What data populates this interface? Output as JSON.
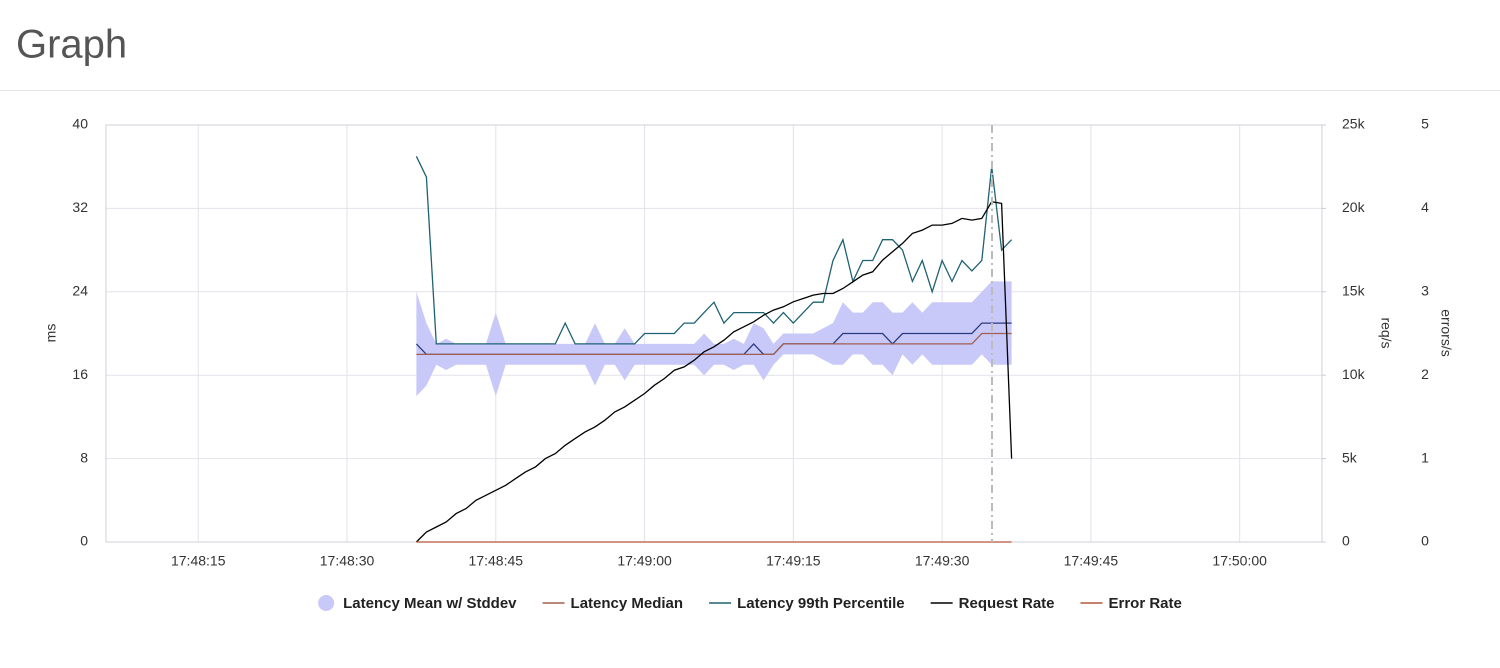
{
  "chart_data": {
    "type": "line",
    "title": "Graph",
    "x": [
      "17:48:37",
      "17:48:38",
      "17:48:39",
      "17:48:40",
      "17:48:41",
      "17:48:42",
      "17:48:43",
      "17:48:44",
      "17:48:45",
      "17:48:46",
      "17:48:47",
      "17:48:48",
      "17:48:49",
      "17:48:50",
      "17:48:51",
      "17:48:52",
      "17:48:53",
      "17:48:54",
      "17:48:55",
      "17:48:56",
      "17:48:57",
      "17:48:58",
      "17:48:59",
      "17:49:00",
      "17:49:01",
      "17:49:02",
      "17:49:03",
      "17:49:04",
      "17:49:05",
      "17:49:06",
      "17:49:07",
      "17:49:08",
      "17:49:09",
      "17:49:10",
      "17:49:11",
      "17:49:12",
      "17:49:13",
      "17:49:14",
      "17:49:15",
      "17:49:16",
      "17:49:17",
      "17:49:18",
      "17:49:19",
      "17:49:20",
      "17:49:21",
      "17:49:22",
      "17:49:23",
      "17:49:24",
      "17:49:25",
      "17:49:26",
      "17:49:27",
      "17:49:28",
      "17:49:29",
      "17:49:30",
      "17:49:31",
      "17:49:32",
      "17:49:33",
      "17:49:34",
      "17:49:35",
      "17:49:36",
      "17:49:37"
    ],
    "xlim": [
      "17:48:05.7",
      "17:50:08.3"
    ],
    "xticks": [
      "17:48:15",
      "17:48:30",
      "17:48:45",
      "17:49:00",
      "17:49:15",
      "17:49:30",
      "17:49:45",
      "17:50:00"
    ],
    "ylabel": "ms",
    "ylim": [
      0,
      40
    ],
    "yticks": [
      0,
      8,
      16,
      24,
      32,
      40
    ],
    "y2label": "req/s",
    "y2lim": [
      0,
      25000
    ],
    "y2ticks": [
      0,
      {
        "value": 5000,
        "label": "5k"
      },
      {
        "value": 10000,
        "label": "10k"
      },
      {
        "value": 15000,
        "label": "15k"
      },
      {
        "value": 20000,
        "label": "20k"
      },
      {
        "value": 25000,
        "label": "25k"
      }
    ],
    "y3label": "errors/s",
    "y3lim": [
      0,
      5
    ],
    "y3ticks": [
      0,
      1,
      2,
      3,
      4,
      5
    ],
    "grid": true,
    "series": [
      {
        "name": "Latency Mean w/ Stddev",
        "color": "#c9c9f9",
        "line_color": "#2a3a80",
        "values": [
          19,
          18,
          18,
          18,
          18,
          18,
          18,
          18,
          18,
          18,
          18,
          18,
          18,
          18,
          18,
          18,
          18,
          18,
          18,
          18,
          18,
          18,
          18,
          18,
          18,
          18,
          18,
          18,
          18,
          18,
          18,
          18,
          18,
          18,
          19,
          18,
          18,
          19,
          19,
          19,
          19,
          19,
          19,
          20,
          20,
          20,
          20,
          20,
          19,
          20,
          20,
          20,
          20,
          20,
          20,
          20,
          20,
          21,
          21,
          21,
          21
        ],
        "std": [
          5,
          3,
          1,
          1.5,
          1,
          1,
          1,
          1,
          4,
          1,
          1,
          1,
          1,
          1,
          1,
          1,
          1,
          1,
          3,
          1,
          1,
          2.5,
          1,
          1,
          1,
          1,
          1,
          1,
          1,
          2,
          1,
          1,
          1.5,
          1,
          2,
          2.5,
          1,
          1,
          1,
          1,
          1,
          1.5,
          2,
          3,
          2,
          2,
          3,
          3,
          3,
          2,
          3,
          2,
          3,
          3,
          3,
          3,
          3,
          3,
          4,
          4,
          4
        ]
      },
      {
        "name": "Latency Median",
        "color": "#a0604e",
        "values": [
          18,
          18,
          18,
          18,
          18,
          18,
          18,
          18,
          18,
          18,
          18,
          18,
          18,
          18,
          18,
          18,
          18,
          18,
          18,
          18,
          18,
          18,
          18,
          18,
          18,
          18,
          18,
          18,
          18,
          18,
          18,
          18,
          18,
          18,
          18,
          18,
          18,
          19,
          19,
          19,
          19,
          19,
          19,
          19,
          19,
          19,
          19,
          19,
          19,
          19,
          19,
          19,
          19,
          19,
          19,
          19,
          19,
          20,
          20,
          20,
          20
        ]
      },
      {
        "name": "Latency 99th Percentile",
        "color": "#1f6272",
        "values": [
          37,
          35,
          19,
          19,
          19,
          19,
          19,
          19,
          19,
          19,
          19,
          19,
          19,
          19,
          19,
          21,
          19,
          19,
          19,
          19,
          19,
          19,
          19,
          20,
          20,
          20,
          20,
          21,
          21,
          22,
          23,
          21,
          22,
          22,
          22,
          22,
          21,
          22,
          21,
          22,
          23,
          23,
          27,
          29,
          25,
          27,
          27,
          29,
          29,
          28,
          25,
          27,
          24,
          27,
          25,
          27,
          26,
          27,
          36,
          28,
          29
        ]
      },
      {
        "name": "Request Rate",
        "color": "#000000",
        "axis": "y2",
        "values": [
          0,
          600,
          900,
          1200,
          1700,
          2000,
          2500,
          2800,
          3100,
          3400,
          3800,
          4200,
          4500,
          5000,
          5300,
          5800,
          6200,
          6600,
          6900,
          7300,
          7800,
          8100,
          8500,
          8900,
          9400,
          9800,
          10300,
          10500,
          10900,
          11400,
          11700,
          12100,
          12600,
          12900,
          13200,
          13600,
          13900,
          14100,
          14400,
          14600,
          14800,
          14900,
          14900,
          15200,
          15600,
          16000,
          16200,
          16900,
          17400,
          17900,
          18500,
          18700,
          19000,
          19000,
          19100,
          19400,
          19300,
          19400,
          20400,
          20300,
          5000
        ]
      },
      {
        "name": "Error Rate",
        "color": "#b5563a",
        "axis": "y3",
        "values": [
          0,
          0,
          0,
          0,
          0,
          0,
          0,
          0,
          0,
          0,
          0,
          0,
          0,
          0,
          0,
          0,
          0,
          0,
          0,
          0,
          0,
          0,
          0,
          0,
          0,
          0,
          0,
          0,
          0,
          0,
          0,
          0,
          0,
          0,
          0,
          0,
          0,
          0,
          0,
          0,
          0,
          0,
          0,
          0,
          0,
          0,
          0,
          0,
          0,
          0,
          0,
          0,
          0,
          0,
          0,
          0,
          0,
          0,
          0,
          0,
          0
        ]
      }
    ]
  }
}
